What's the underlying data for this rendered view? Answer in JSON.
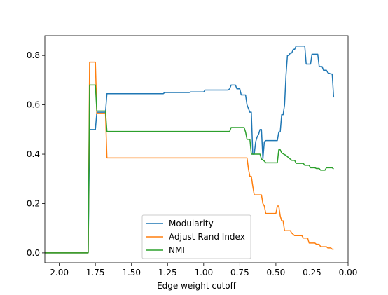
{
  "chart_data": {
    "type": "line",
    "title": "",
    "xlabel": "Edge weight cutoff",
    "ylabel": "",
    "xlim": [
      2.1,
      0.0
    ],
    "ylim": [
      -0.04,
      0.88
    ],
    "x_reversed": true,
    "grid": false,
    "legend_position": "lower-center",
    "x_ticks": [
      2.0,
      1.75,
      1.5,
      1.25,
      1.0,
      0.75,
      0.5,
      0.25,
      0.0
    ],
    "x_tick_labels": [
      "2.00",
      "1.75",
      "1.50",
      "1.25",
      "1.00",
      "0.75",
      "0.50",
      "0.25",
      "0.00"
    ],
    "y_ticks": [
      0.0,
      0.2,
      0.4,
      0.6,
      0.8
    ],
    "y_tick_labels": [
      "0.0",
      "0.2",
      "0.4",
      "0.6",
      "0.8"
    ],
    "series": [
      {
        "name": "Modularity",
        "color": "#1f77b4",
        "points": [
          [
            2.1,
            0.0
          ],
          [
            1.8,
            0.0
          ],
          [
            1.79,
            0.5
          ],
          [
            1.75,
            0.5
          ],
          [
            1.74,
            0.57
          ],
          [
            1.68,
            0.57
          ],
          [
            1.67,
            0.645
          ],
          [
            1.28,
            0.645
          ],
          [
            1.27,
            0.65
          ],
          [
            1.1,
            0.65
          ],
          [
            1.09,
            0.652
          ],
          [
            1.0,
            0.652
          ],
          [
            0.99,
            0.66
          ],
          [
            0.83,
            0.66
          ],
          [
            0.82,
            0.665
          ],
          [
            0.81,
            0.68
          ],
          [
            0.78,
            0.68
          ],
          [
            0.77,
            0.665
          ],
          [
            0.75,
            0.665
          ],
          [
            0.74,
            0.64
          ],
          [
            0.71,
            0.64
          ],
          [
            0.7,
            0.6
          ],
          [
            0.68,
            0.57
          ],
          [
            0.67,
            0.57
          ],
          [
            0.66,
            0.4
          ],
          [
            0.65,
            0.4
          ],
          [
            0.64,
            0.45
          ],
          [
            0.63,
            0.47
          ],
          [
            0.62,
            0.48
          ],
          [
            0.61,
            0.5
          ],
          [
            0.6,
            0.5
          ],
          [
            0.59,
            0.38
          ],
          [
            0.58,
            0.45
          ],
          [
            0.57,
            0.455
          ],
          [
            0.49,
            0.455
          ],
          [
            0.48,
            0.49
          ],
          [
            0.47,
            0.49
          ],
          [
            0.46,
            0.56
          ],
          [
            0.45,
            0.56
          ],
          [
            0.44,
            0.6
          ],
          [
            0.43,
            0.72
          ],
          [
            0.42,
            0.8
          ],
          [
            0.41,
            0.8
          ],
          [
            0.4,
            0.81
          ],
          [
            0.39,
            0.81
          ],
          [
            0.38,
            0.825
          ],
          [
            0.37,
            0.825
          ],
          [
            0.36,
            0.838
          ],
          [
            0.3,
            0.838
          ],
          [
            0.29,
            0.765
          ],
          [
            0.26,
            0.765
          ],
          [
            0.25,
            0.805
          ],
          [
            0.21,
            0.805
          ],
          [
            0.2,
            0.755
          ],
          [
            0.18,
            0.755
          ],
          [
            0.17,
            0.74
          ],
          [
            0.15,
            0.74
          ],
          [
            0.14,
            0.73
          ],
          [
            0.12,
            0.725
          ],
          [
            0.11,
            0.725
          ],
          [
            0.1,
            0.63
          ]
        ]
      },
      {
        "name": "Adjust Rand Index",
        "color": "#ff7f0e",
        "points": [
          [
            2.1,
            0.0
          ],
          [
            1.8,
            0.0
          ],
          [
            1.79,
            0.773
          ],
          [
            1.75,
            0.773
          ],
          [
            1.74,
            0.565
          ],
          [
            1.68,
            0.565
          ],
          [
            1.67,
            0.385
          ],
          [
            0.77,
            0.385
          ],
          [
            0.7,
            0.385
          ],
          [
            0.69,
            0.34
          ],
          [
            0.68,
            0.31
          ],
          [
            0.67,
            0.31
          ],
          [
            0.66,
            0.27
          ],
          [
            0.65,
            0.235
          ],
          [
            0.6,
            0.235
          ],
          [
            0.59,
            0.2
          ],
          [
            0.58,
            0.19
          ],
          [
            0.57,
            0.16
          ],
          [
            0.5,
            0.16
          ],
          [
            0.49,
            0.19
          ],
          [
            0.48,
            0.19
          ],
          [
            0.47,
            0.15
          ],
          [
            0.46,
            0.13
          ],
          [
            0.45,
            0.13
          ],
          [
            0.44,
            0.09
          ],
          [
            0.4,
            0.09
          ],
          [
            0.39,
            0.08
          ],
          [
            0.37,
            0.07
          ],
          [
            0.32,
            0.07
          ],
          [
            0.31,
            0.06
          ],
          [
            0.28,
            0.06
          ],
          [
            0.27,
            0.04
          ],
          [
            0.23,
            0.04
          ],
          [
            0.22,
            0.035
          ],
          [
            0.2,
            0.035
          ],
          [
            0.19,
            0.025
          ],
          [
            0.15,
            0.025
          ],
          [
            0.14,
            0.02
          ],
          [
            0.12,
            0.02
          ],
          [
            0.11,
            0.015
          ],
          [
            0.1,
            0.015
          ]
        ]
      },
      {
        "name": "NMI",
        "color": "#2ca02c",
        "points": [
          [
            2.1,
            0.0
          ],
          [
            1.8,
            0.0
          ],
          [
            1.79,
            0.68
          ],
          [
            1.75,
            0.68
          ],
          [
            1.74,
            0.575
          ],
          [
            1.68,
            0.575
          ],
          [
            1.67,
            0.492
          ],
          [
            0.82,
            0.492
          ],
          [
            0.81,
            0.508
          ],
          [
            0.72,
            0.508
          ],
          [
            0.71,
            0.49
          ],
          [
            0.7,
            0.46
          ],
          [
            0.68,
            0.46
          ],
          [
            0.67,
            0.4
          ],
          [
            0.61,
            0.4
          ],
          [
            0.6,
            0.38
          ],
          [
            0.58,
            0.372
          ],
          [
            0.57,
            0.365
          ],
          [
            0.49,
            0.365
          ],
          [
            0.48,
            0.418
          ],
          [
            0.47,
            0.418
          ],
          [
            0.46,
            0.405
          ],
          [
            0.43,
            0.395
          ],
          [
            0.41,
            0.385
          ],
          [
            0.39,
            0.375
          ],
          [
            0.37,
            0.375
          ],
          [
            0.36,
            0.363
          ],
          [
            0.31,
            0.363
          ],
          [
            0.3,
            0.355
          ],
          [
            0.27,
            0.355
          ],
          [
            0.26,
            0.345
          ],
          [
            0.23,
            0.345
          ],
          [
            0.22,
            0.342
          ],
          [
            0.2,
            0.342
          ],
          [
            0.19,
            0.335
          ],
          [
            0.16,
            0.335
          ],
          [
            0.15,
            0.345
          ],
          [
            0.11,
            0.345
          ],
          [
            0.1,
            0.34
          ]
        ]
      }
    ]
  }
}
